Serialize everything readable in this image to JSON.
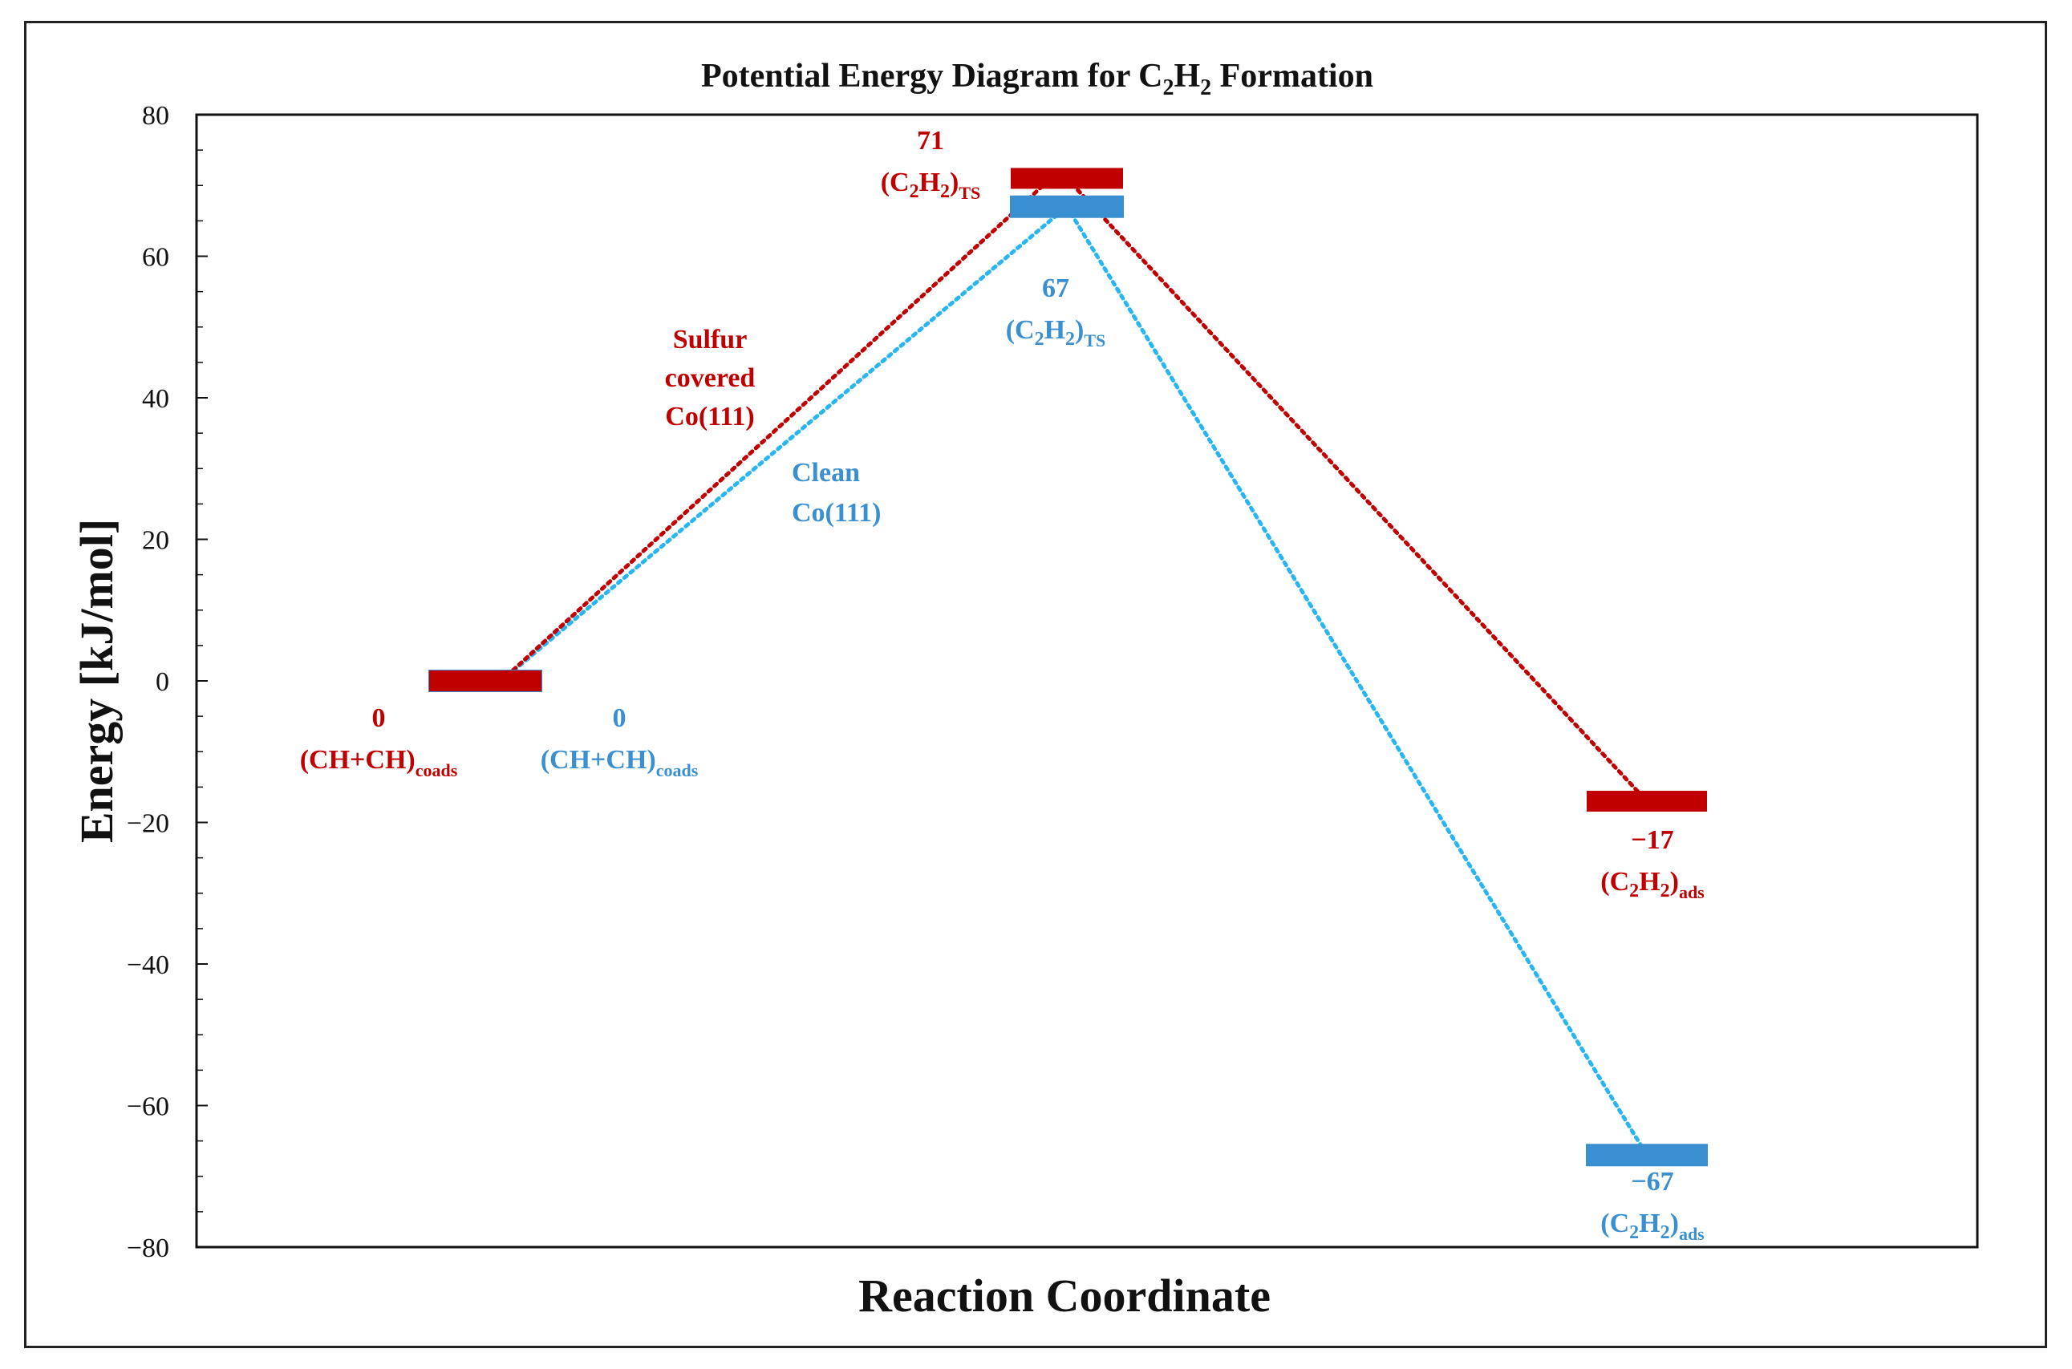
{
  "chart_data": {
    "type": "line",
    "title": {
      "main": "Potential Energy Diagram for C",
      "sub1": "2",
      "mid": "H",
      "sub2": "2",
      "tail": " Formation"
    },
    "xlabel": "Reaction Coordinate",
    "ylabel": "Energy [kJ/mol]",
    "ylim": [
      -80,
      80
    ],
    "yticks": [
      80,
      60,
      40,
      20,
      0,
      -20,
      -40,
      -60,
      -80
    ],
    "ytick_labels": [
      "80",
      "60",
      "40",
      "20",
      "0",
      "−20",
      "−40",
      "−60",
      "−80"
    ],
    "grid": false,
    "series": [
      {
        "name": "Sulfur covered Co(111)",
        "name_lines": [
          "Sulfur",
          "covered",
          "Co(111)"
        ],
        "color": "#c00000",
        "values": [
          0,
          71,
          -17
        ],
        "labels": [
          {
            "value": "0",
            "base": "(CH+CH)",
            "sub": "coads"
          },
          {
            "value": "71",
            "base": "(C",
            "sub1": "2",
            "mid": "H",
            "sub2": "2",
            "end": ")",
            "sub": "TS"
          },
          {
            "value": "−17",
            "base": "(C",
            "sub1": "2",
            "mid": "H",
            "sub2": "2",
            "end": ")",
            "sub": "ads"
          }
        ]
      },
      {
        "name": "Clean Co(111)",
        "name_lines": [
          "Clean",
          "Co(111)"
        ],
        "color": "#3a8fd0",
        "line_color": "#29b6f0",
        "values": [
          0,
          67,
          -67
        ],
        "labels": [
          {
            "value": "0",
            "base": "(CH+CH)",
            "sub": "coads"
          },
          {
            "value": "67",
            "base": "(C",
            "sub1": "2",
            "mid": "H",
            "sub2": "2",
            "end": ")",
            "sub": "TS"
          },
          {
            "value": "−67",
            "base": "(C",
            "sub1": "2",
            "mid": "H",
            "sub2": "2",
            "end": ")",
            "sub": "ads"
          }
        ]
      }
    ]
  }
}
